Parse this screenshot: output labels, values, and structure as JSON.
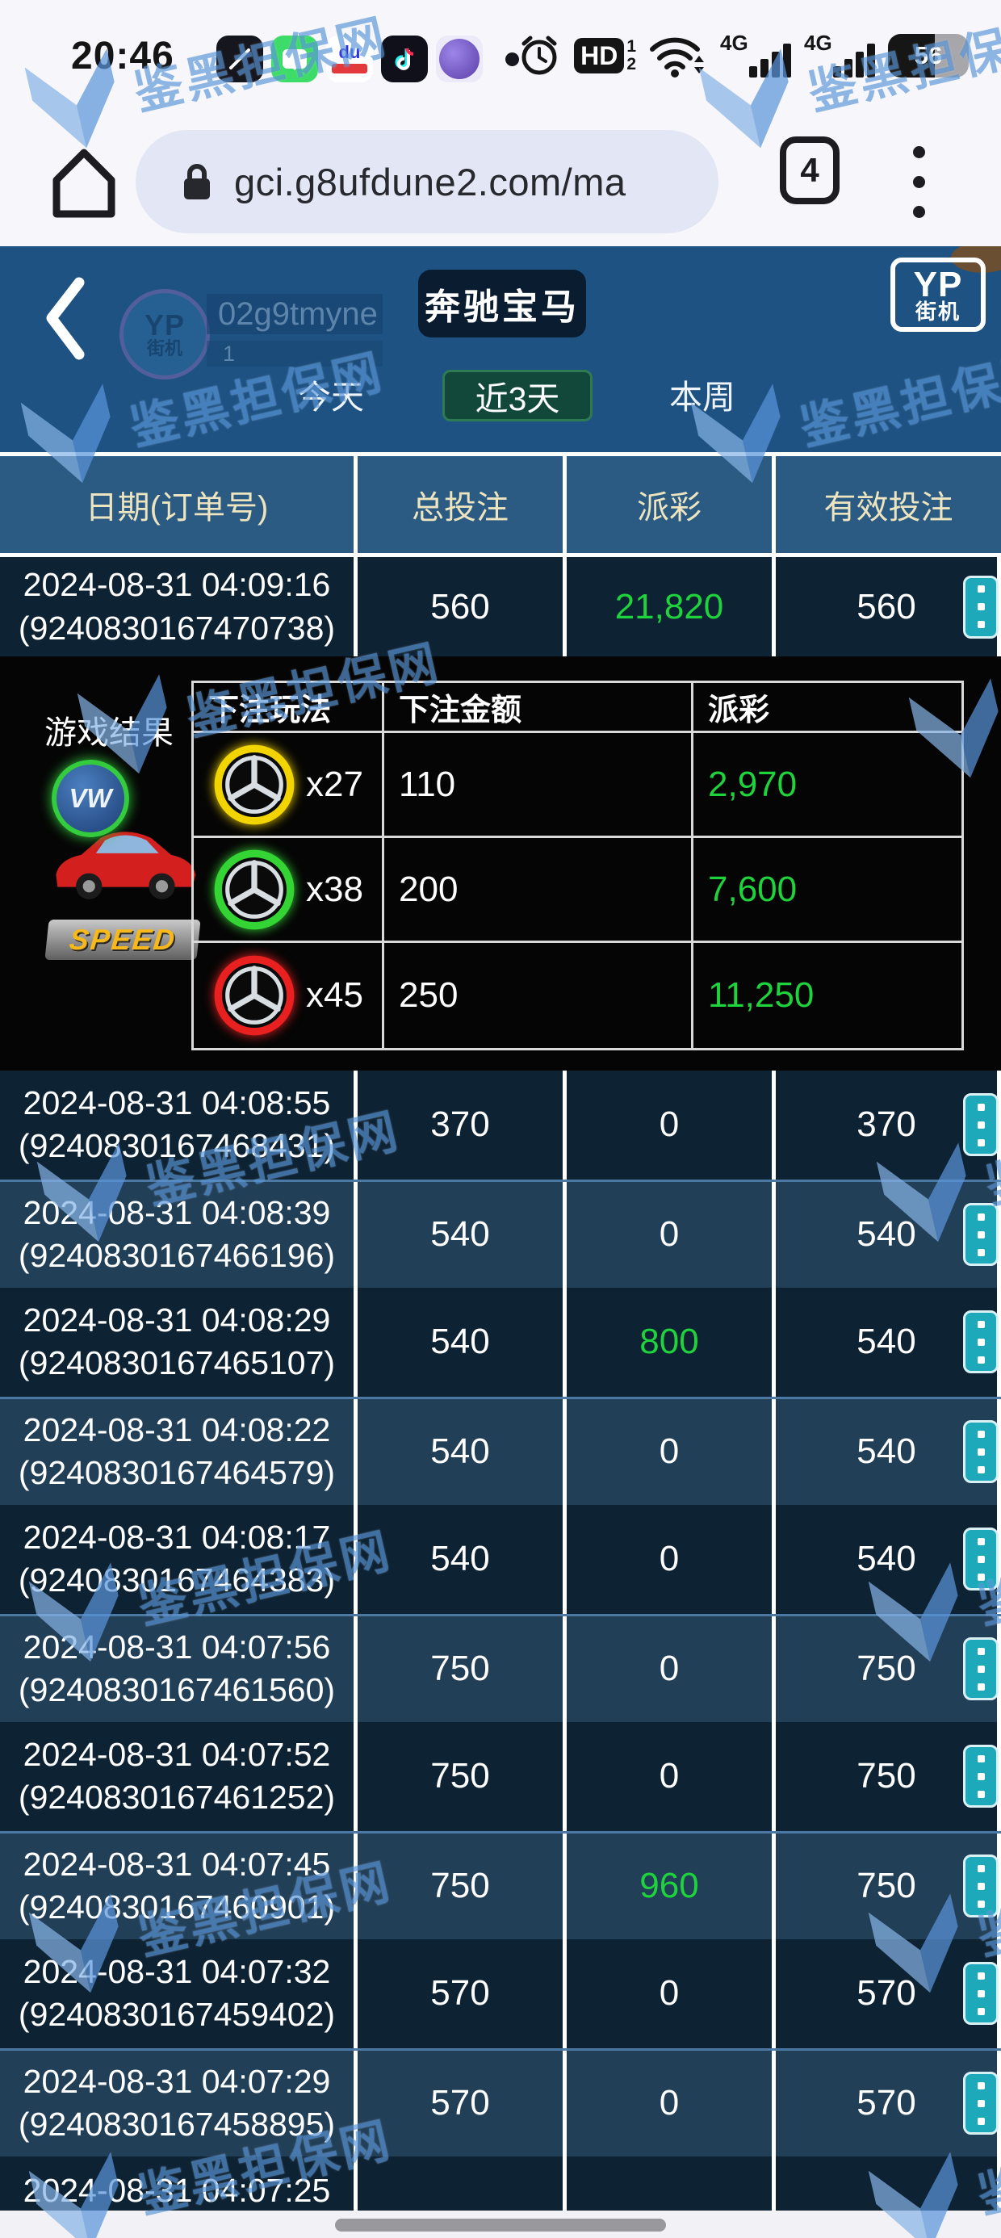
{
  "status_bar": {
    "time": "20:46",
    "battery_percent": "56",
    "hd_label": "HD",
    "sim1": "1",
    "sim2": "2",
    "net1": "4G",
    "net2": "4G",
    "app_icons": [
      "clock-app",
      "messages-app",
      "baidu-app",
      "tiktok-app",
      "quark-browser-app"
    ],
    "baidu_label": "du"
  },
  "browser": {
    "url": "gci.g8ufdune2.com/ma",
    "tab_count": "4"
  },
  "game_header": {
    "username": "02g9tmyne",
    "level": "1",
    "avatar_line1": "YP",
    "avatar_line2": "街机",
    "title": "奔驰宝马",
    "brand_line1": "YP",
    "brand_line2": "街机"
  },
  "tabs": {
    "today": "今天",
    "last3days": "近3天",
    "thisweek": "本周",
    "active": "近3天"
  },
  "table": {
    "headers": [
      "日期(订单号)",
      "总投注",
      "派彩",
      "有效投注"
    ],
    "first_row": {
      "date": "2024-08-31 04:09:16",
      "order": "(9240830167470738)",
      "total": "560",
      "payout": "21,820",
      "valid": "560"
    },
    "rows": [
      {
        "date": "2024-08-31 04:08:55",
        "order": "(9240830167468431)",
        "total": "370",
        "payout": "0",
        "valid": "370"
      },
      {
        "date": "2024-08-31 04:08:39",
        "order": "(9240830167466196)",
        "total": "540",
        "payout": "0",
        "valid": "540"
      },
      {
        "date": "2024-08-31 04:08:29",
        "order": "(9240830167465107)",
        "total": "540",
        "payout": "800",
        "valid": "540"
      },
      {
        "date": "2024-08-31 04:08:22",
        "order": "(9240830167464579)",
        "total": "540",
        "payout": "0",
        "valid": "540"
      },
      {
        "date": "2024-08-31 04:08:17",
        "order": "(9240830167464383)",
        "total": "540",
        "payout": "0",
        "valid": "540"
      },
      {
        "date": "2024-08-31 04:07:56",
        "order": "(9240830167461560)",
        "total": "750",
        "payout": "0",
        "valid": "750"
      },
      {
        "date": "2024-08-31 04:07:52",
        "order": "(9240830167461252)",
        "total": "750",
        "payout": "0",
        "valid": "750"
      },
      {
        "date": "2024-08-31 04:07:45",
        "order": "(9240830167460901)",
        "total": "750",
        "payout": "960",
        "valid": "750"
      },
      {
        "date": "2024-08-31 04:07:32",
        "order": "(9240830167459402)",
        "total": "570",
        "payout": "0",
        "valid": "570"
      },
      {
        "date": "2024-08-31 04:07:29",
        "order": "(9240830167458895)",
        "total": "570",
        "payout": "0",
        "valid": "570"
      },
      {
        "date": "2024-08-31 04:07:25",
        "order": "",
        "total": "",
        "payout": "",
        "valid": ""
      }
    ]
  },
  "expanded": {
    "label": "游戏结果",
    "result_icon": {
      "badge": "VW",
      "speed": "SPEED"
    },
    "sub_headers": [
      "下注玩法",
      "下注金额",
      "派彩"
    ],
    "sub_rows": [
      {
        "ring": "yellow",
        "multiplier": "x27",
        "amount": "110",
        "payout": "2,970"
      },
      {
        "ring": "green",
        "multiplier": "x38",
        "amount": "200",
        "payout": "7,600"
      },
      {
        "ring": "red",
        "multiplier": "x45",
        "amount": "250",
        "payout": "11,250"
      }
    ]
  },
  "watermark": {
    "text": "鉴黑担保网"
  },
  "colors": {
    "page_blue": "#1d5283",
    "payout_green": "#1fd33c",
    "action_teal": "#1ea9bb",
    "tab_active_bg": "#11483a",
    "header_text": "#ece5c0"
  }
}
